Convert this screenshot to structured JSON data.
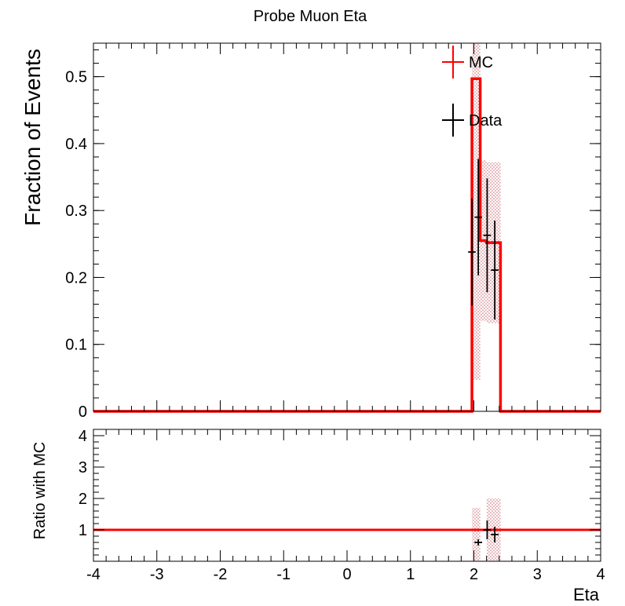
{
  "chart_data": {
    "type": "histogram",
    "title": "Probe Muon Eta",
    "xlabel": "Eta",
    "xlim": [
      -4,
      4
    ],
    "x_ticks": [
      "-4",
      "-3",
      "-2",
      "-1",
      "0",
      "1",
      "2",
      "3",
      "4"
    ],
    "top_panel": {
      "ylabel": "Fraction of Events",
      "ylim": [
        0,
        0.55
      ],
      "y_ticks": [
        "0",
        "0.1",
        "0.2",
        "0.3",
        "0.4",
        "0.5"
      ],
      "legend": [
        "MC",
        "Data"
      ],
      "legend_position": "top-right",
      "mc": {
        "name": "MC",
        "color": "#ff0000",
        "bin_edges": [
          -4.0,
          1.97,
          2.1,
          2.2,
          2.42,
          4.0
        ],
        "values": [
          0.0,
          0.497,
          0.255,
          0.252,
          0.0
        ],
        "uncertainty": [
          0.0,
          0.45,
          0.12,
          0.12,
          0.0
        ],
        "band_color": "#c0505a"
      },
      "data": {
        "name": "Data",
        "color": "#000000",
        "points": [
          {
            "x": 1.97,
            "xerr": 0.06,
            "y": 0.238,
            "yerr": 0.08
          },
          {
            "x": 2.07,
            "xerr": 0.06,
            "y": 0.29,
            "yerr": 0.087
          },
          {
            "x": 2.21,
            "xerr": 0.06,
            "y": 0.263,
            "yerr": 0.085
          },
          {
            "x": 2.33,
            "xerr": 0.06,
            "y": 0.211,
            "yerr": 0.074
          }
        ]
      }
    },
    "bottom_panel": {
      "ylabel": "Ratio with MC",
      "ylim": [
        0,
        4.2
      ],
      "y_ticks": [
        "1",
        "2",
        "3",
        "4"
      ],
      "reference_line": 1,
      "band_bins": [
        {
          "x0": 1.97,
          "x1": 2.1,
          "lo": 0.0,
          "hi": 1.7
        },
        {
          "x0": 2.2,
          "x1": 2.42,
          "lo": 0.0,
          "hi": 2.0
        }
      ],
      "data": {
        "points": [
          {
            "x": 2.07,
            "xerr": 0.06,
            "y": 0.6,
            "yerr": 0.1
          },
          {
            "x": 2.21,
            "xerr": 0.06,
            "y": 1.0,
            "yerr": 0.3
          },
          {
            "x": 2.33,
            "xerr": 0.06,
            "y": 0.85,
            "yerr": 0.25
          }
        ]
      }
    }
  }
}
